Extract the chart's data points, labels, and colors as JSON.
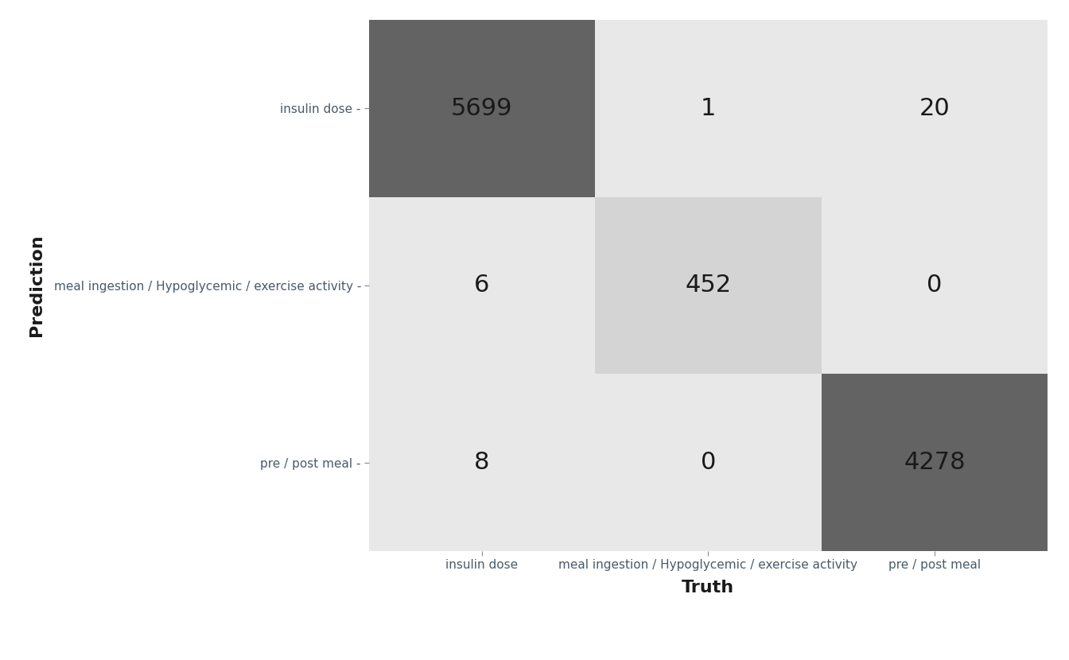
{
  "matrix": [
    [
      5699,
      1,
      20
    ],
    [
      6,
      452,
      0
    ],
    [
      8,
      0,
      4278
    ]
  ],
  "row_labels": [
    "insulin dose",
    "meal ingestion / Hypoglycemic / exercise activity",
    "pre / post meal"
  ],
  "col_labels": [
    "insulin dose",
    "meal ingestion / Hypoglycemic / exercise activity",
    "pre / post meal"
  ],
  "xlabel": "Truth",
  "ylabel": "Prediction",
  "background_color": "#ffffff",
  "dark_color": "#636363",
  "medium_color": "#d4d4d4",
  "light_color": "#e8e8e8",
  "label_color": "#4a5a6b",
  "text_color": "#1a1a1a",
  "figsize": [
    13.44,
    8.3
  ],
  "dpi": 100
}
